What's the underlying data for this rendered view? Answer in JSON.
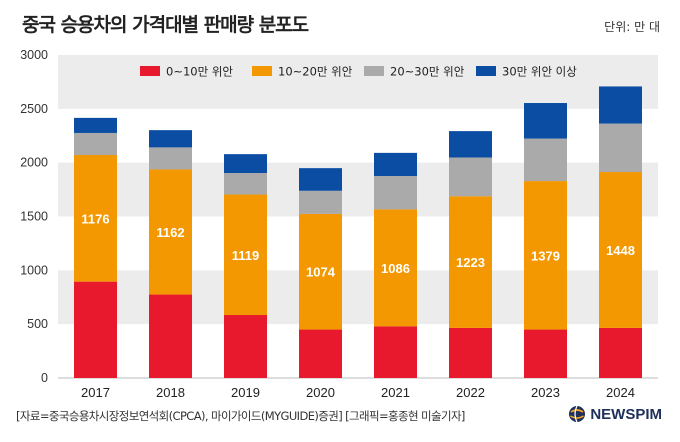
{
  "chart_data": {
    "type": "bar",
    "stacked": true,
    "title": "중국 승용차의 가격대별 판매량 분포도",
    "unit": "단위: 만 대",
    "categories": [
      "2017",
      "2018",
      "2019",
      "2020",
      "2021",
      "2022",
      "2023",
      "2024"
    ],
    "series": [
      {
        "name": "0~10만 위안",
        "color": "#e8192c",
        "values": [
          895,
          775,
          585,
          450,
          480,
          465,
          450,
          465
        ]
      },
      {
        "name": "10~20만 위안",
        "color": "#f39800",
        "values": [
          1176,
          1162,
          1119,
          1074,
          1086,
          1223,
          1379,
          1448
        ]
      },
      {
        "name": "20~30만 위안",
        "color": "#aaaaaa",
        "values": [
          205,
          205,
          200,
          215,
          310,
          360,
          395,
          450
        ]
      },
      {
        "name": "30만 위안 이상",
        "color": "#0a4da2",
        "values": [
          140,
          160,
          175,
          210,
          215,
          245,
          330,
          345
        ]
      }
    ],
    "data_labels_series": "10~20만 위안",
    "ylim": [
      0,
      3000
    ],
    "yticks": [
      0,
      500,
      1000,
      1500,
      2000,
      2500,
      3000
    ],
    "legend_position": "top"
  },
  "source": "[자료=중국승용차시장정보연석회(CPCA), 마이가이드(MYGUIDE)증권] [그래픽=홍종현 미술기자]",
  "brand": "NEWSPIM"
}
